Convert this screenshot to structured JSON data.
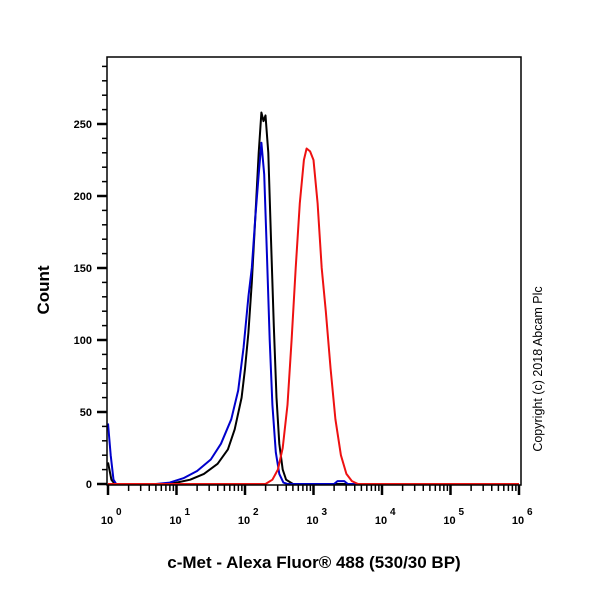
{
  "chart_data": {
    "type": "line",
    "subtype": "flow-cytometry histogram overlay",
    "title": "",
    "xlabel": "c-Met - Alexa Fluor® 488 (530/30 BP)",
    "ylabel": "Count",
    "xscale": "log",
    "xlim": [
      1,
      1000000
    ],
    "ylim": [
      0,
      290
    ],
    "x_tick_labels": [
      {
        "base": "10",
        "exp": "0",
        "value": 1
      },
      {
        "base": "10",
        "exp": "1",
        "value": 10
      },
      {
        "base": "10",
        "exp": "2",
        "value": 100
      },
      {
        "base": "10",
        "exp": "3",
        "value": 1000
      },
      {
        "base": "10",
        "exp": "4",
        "value": 10000
      },
      {
        "base": "10",
        "exp": "5",
        "value": 100000
      },
      {
        "base": "10",
        "exp": "6",
        "value": 1000000
      }
    ],
    "y_ticks": [
      0,
      50,
      100,
      150,
      200,
      250
    ],
    "y_minor_step": 10,
    "grid": false,
    "legend": null,
    "annotation": "Copyright (c) 2018 Abcam Plc",
    "series": [
      {
        "name": "black",
        "color": "#000000",
        "note": "black histogram, peak ~260 counts near 1.8x10^2",
        "points": [
          [
            0.0,
            15
          ],
          [
            0.05,
            3
          ],
          [
            0.1,
            0
          ],
          [
            0.8,
            0
          ],
          [
            1.0,
            1
          ],
          [
            1.2,
            3
          ],
          [
            1.4,
            7
          ],
          [
            1.6,
            14
          ],
          [
            1.75,
            24
          ],
          [
            1.85,
            38
          ],
          [
            1.95,
            60
          ],
          [
            2.0,
            80
          ],
          [
            2.05,
            105
          ],
          [
            2.1,
            140
          ],
          [
            2.15,
            185
          ],
          [
            2.2,
            230
          ],
          [
            2.24,
            258
          ],
          [
            2.27,
            252
          ],
          [
            2.3,
            256
          ],
          [
            2.34,
            230
          ],
          [
            2.38,
            170
          ],
          [
            2.42,
            110
          ],
          [
            2.46,
            60
          ],
          [
            2.5,
            28
          ],
          [
            2.55,
            10
          ],
          [
            2.6,
            3
          ],
          [
            2.7,
            0
          ],
          [
            6.0,
            0
          ]
        ]
      },
      {
        "name": "blue",
        "color": "#0000cc",
        "note": "blue histogram, peak ~237 counts near 1.7x10^2, spike at axis origin",
        "points": [
          [
            0.0,
            42
          ],
          [
            0.04,
            20
          ],
          [
            0.08,
            3
          ],
          [
            0.12,
            0
          ],
          [
            0.7,
            0
          ],
          [
            0.9,
            1
          ],
          [
            1.1,
            4
          ],
          [
            1.3,
            9
          ],
          [
            1.5,
            17
          ],
          [
            1.65,
            28
          ],
          [
            1.8,
            45
          ],
          [
            1.9,
            65
          ],
          [
            1.98,
            95
          ],
          [
            2.05,
            130
          ],
          [
            2.1,
            150
          ],
          [
            2.15,
            185
          ],
          [
            2.2,
            215
          ],
          [
            2.24,
            237
          ],
          [
            2.28,
            215
          ],
          [
            2.32,
            160
          ],
          [
            2.36,
            100
          ],
          [
            2.4,
            55
          ],
          [
            2.45,
            22
          ],
          [
            2.5,
            7
          ],
          [
            2.56,
            1
          ],
          [
            2.62,
            0
          ],
          [
            3.3,
            0
          ],
          [
            3.35,
            2
          ],
          [
            3.45,
            2
          ],
          [
            3.5,
            0
          ],
          [
            6.0,
            0
          ]
        ]
      },
      {
        "name": "red",
        "color": "#ee1111",
        "note": "red histogram, peak ~233 counts near 8.5x10^2",
        "points": [
          [
            0.0,
            0
          ],
          [
            2.3,
            0
          ],
          [
            2.4,
            3
          ],
          [
            2.48,
            10
          ],
          [
            2.55,
            25
          ],
          [
            2.62,
            55
          ],
          [
            2.68,
            100
          ],
          [
            2.74,
            150
          ],
          [
            2.8,
            195
          ],
          [
            2.86,
            225
          ],
          [
            2.9,
            233
          ],
          [
            2.95,
            231
          ],
          [
            3.0,
            225
          ],
          [
            3.06,
            195
          ],
          [
            3.12,
            150
          ],
          [
            3.18,
            120
          ],
          [
            3.25,
            80
          ],
          [
            3.32,
            45
          ],
          [
            3.4,
            20
          ],
          [
            3.48,
            7
          ],
          [
            3.56,
            2
          ],
          [
            3.65,
            0
          ],
          [
            6.0,
            0
          ]
        ]
      }
    ]
  },
  "axes": {
    "ylabel": "Count",
    "xlabel": "c-Met - Alexa Fluor® 488 (530/30 BP)"
  },
  "annotation": "Copyright (c) 2018 Abcam Plc"
}
